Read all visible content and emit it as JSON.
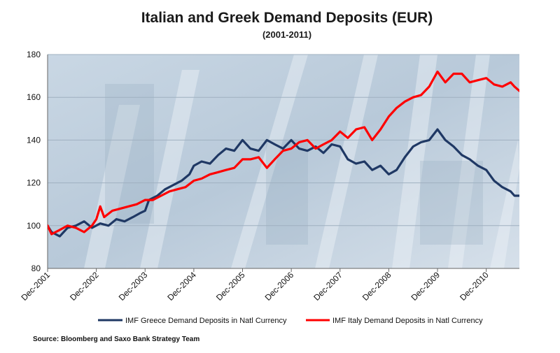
{
  "chart_data": {
    "type": "line",
    "title": "Italian and Greek Demand Deposits (EUR)",
    "subtitle": "(2001-2011)",
    "xlabel": "",
    "ylabel": "",
    "ylim": [
      80,
      180
    ],
    "yticks": [
      80,
      100,
      120,
      140,
      160,
      180
    ],
    "xlim": [
      2001.92,
      2011.6
    ],
    "xticks": [
      {
        "label": "Dec-2001",
        "x": 2001.92
      },
      {
        "label": "Dec-2002",
        "x": 2002.92
      },
      {
        "label": "Dec-2003",
        "x": 2003.92
      },
      {
        "label": "Dec-2004",
        "x": 2004.92
      },
      {
        "label": "Dec-2005",
        "x": 2005.92
      },
      {
        "label": "Dec-2006",
        "x": 2006.92
      },
      {
        "label": "Dec-2007",
        "x": 2007.92
      },
      {
        "label": "Dec-2008",
        "x": 2008.92
      },
      {
        "label": "Dec-2009",
        "x": 2009.92
      },
      {
        "label": "Dec-2010",
        "x": 2010.92
      }
    ],
    "grid": true,
    "legend_position": "bottom",
    "series": [
      {
        "name": "IMF Greece Demand Deposits in Natl Currency",
        "color": "#1f3864",
        "points": [
          [
            2001.92,
            100
          ],
          [
            2002.0,
            97
          ],
          [
            2002.17,
            95
          ],
          [
            2002.33,
            99
          ],
          [
            2002.5,
            100
          ],
          [
            2002.67,
            102
          ],
          [
            2002.83,
            99
          ],
          [
            2003.0,
            101
          ],
          [
            2003.17,
            100
          ],
          [
            2003.33,
            103
          ],
          [
            2003.5,
            102
          ],
          [
            2003.67,
            104
          ],
          [
            2003.83,
            106
          ],
          [
            2003.92,
            107
          ],
          [
            2004.0,
            112
          ],
          [
            2004.17,
            114
          ],
          [
            2004.33,
            117
          ],
          [
            2004.5,
            119
          ],
          [
            2004.67,
            121
          ],
          [
            2004.83,
            124
          ],
          [
            2004.92,
            128
          ],
          [
            2005.08,
            130
          ],
          [
            2005.25,
            129
          ],
          [
            2005.42,
            133
          ],
          [
            2005.58,
            136
          ],
          [
            2005.75,
            135
          ],
          [
            2005.92,
            140
          ],
          [
            2006.08,
            136
          ],
          [
            2006.25,
            135
          ],
          [
            2006.42,
            140
          ],
          [
            2006.58,
            138
          ],
          [
            2006.75,
            136
          ],
          [
            2006.92,
            140
          ],
          [
            2007.08,
            136
          ],
          [
            2007.25,
            135
          ],
          [
            2007.42,
            137
          ],
          [
            2007.58,
            134
          ],
          [
            2007.75,
            138
          ],
          [
            2007.92,
            137
          ],
          [
            2008.08,
            131
          ],
          [
            2008.25,
            129
          ],
          [
            2008.42,
            130
          ],
          [
            2008.58,
            126
          ],
          [
            2008.75,
            128
          ],
          [
            2008.92,
            124
          ],
          [
            2009.08,
            126
          ],
          [
            2009.25,
            132
          ],
          [
            2009.42,
            137
          ],
          [
            2009.58,
            139
          ],
          [
            2009.75,
            140
          ],
          [
            2009.92,
            145
          ],
          [
            2010.08,
            140
          ],
          [
            2010.25,
            137
          ],
          [
            2010.42,
            133
          ],
          [
            2010.58,
            131
          ],
          [
            2010.75,
            128
          ],
          [
            2010.92,
            126
          ],
          [
            2011.08,
            121
          ],
          [
            2011.25,
            118
          ],
          [
            2011.42,
            116
          ],
          [
            2011.5,
            114
          ],
          [
            2011.6,
            114
          ]
        ]
      },
      {
        "name": "IMF Italy Demand Deposits in Natl Currency",
        "color": "#ff0000",
        "points": [
          [
            2001.92,
            100
          ],
          [
            2002.0,
            96
          ],
          [
            2002.17,
            98
          ],
          [
            2002.33,
            100
          ],
          [
            2002.5,
            99
          ],
          [
            2002.67,
            97
          ],
          [
            2002.83,
            100
          ],
          [
            2002.92,
            103
          ],
          [
            2003.0,
            109
          ],
          [
            2003.08,
            104
          ],
          [
            2003.25,
            107
          ],
          [
            2003.42,
            108
          ],
          [
            2003.58,
            109
          ],
          [
            2003.75,
            110
          ],
          [
            2003.92,
            112
          ],
          [
            2004.08,
            112
          ],
          [
            2004.25,
            114
          ],
          [
            2004.42,
            116
          ],
          [
            2004.58,
            117
          ],
          [
            2004.75,
            118
          ],
          [
            2004.92,
            121
          ],
          [
            2005.08,
            122
          ],
          [
            2005.25,
            124
          ],
          [
            2005.42,
            125
          ],
          [
            2005.58,
            126
          ],
          [
            2005.75,
            127
          ],
          [
            2005.92,
            131
          ],
          [
            2006.08,
            131
          ],
          [
            2006.25,
            132
          ],
          [
            2006.42,
            127
          ],
          [
            2006.58,
            131
          ],
          [
            2006.75,
            135
          ],
          [
            2006.92,
            136
          ],
          [
            2007.08,
            139
          ],
          [
            2007.25,
            140
          ],
          [
            2007.42,
            136
          ],
          [
            2007.58,
            138
          ],
          [
            2007.75,
            140
          ],
          [
            2007.92,
            144
          ],
          [
            2008.08,
            141
          ],
          [
            2008.25,
            145
          ],
          [
            2008.42,
            146
          ],
          [
            2008.58,
            140
          ],
          [
            2008.75,
            145
          ],
          [
            2008.92,
            151
          ],
          [
            2009.08,
            155
          ],
          [
            2009.25,
            158
          ],
          [
            2009.42,
            160
          ],
          [
            2009.58,
            161
          ],
          [
            2009.75,
            165
          ],
          [
            2009.92,
            172
          ],
          [
            2010.08,
            167
          ],
          [
            2010.25,
            171
          ],
          [
            2010.42,
            171
          ],
          [
            2010.58,
            167
          ],
          [
            2010.75,
            168
          ],
          [
            2010.92,
            169
          ],
          [
            2011.08,
            166
          ],
          [
            2011.25,
            165
          ],
          [
            2011.42,
            167
          ],
          [
            2011.5,
            165
          ],
          [
            2011.6,
            163
          ]
        ]
      }
    ],
    "source": "Source: Bloomberg and Saxo Bank Strategy Team"
  }
}
